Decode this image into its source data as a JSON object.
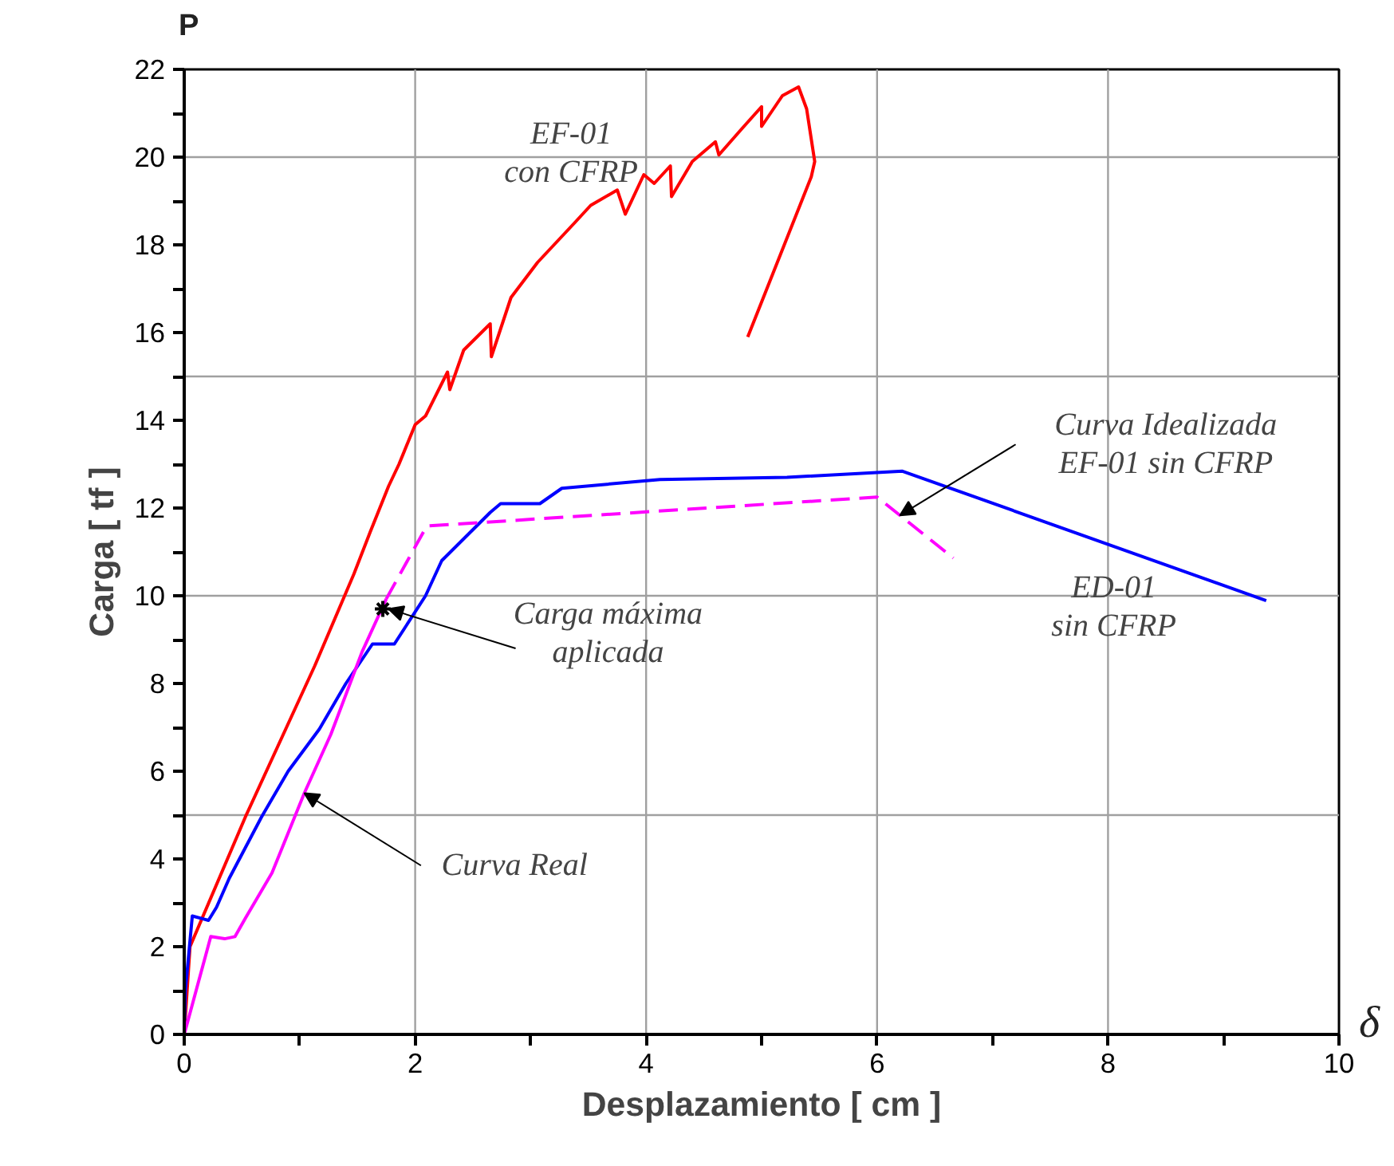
{
  "chart_data": {
    "type": "line",
    "xlabel": "Desplazamiento [ cm ]",
    "ylabel": "Carga [ tf ]",
    "xlim": [
      0,
      10
    ],
    "ylim": [
      0,
      22
    ],
    "xticks": [
      0,
      {
        "value": 1,
        "label": null
      },
      2,
      {
        "value": 3,
        "label": null
      },
      4,
      {
        "value": 5,
        "label": null
      },
      6,
      {
        "value": 7,
        "label": null
      },
      8,
      {
        "value": 9,
        "label": null
      },
      10
    ],
    "yticks": [
      0,
      {
        "value": 1,
        "label": null
      },
      2,
      {
        "value": 3,
        "label": null
      },
      4,
      {
        "value": 5,
        "label": null
      },
      6,
      {
        "value": 7,
        "label": null
      },
      8,
      {
        "value": 9,
        "label": null
      },
      10,
      {
        "value": 11,
        "label": null
      },
      12,
      {
        "value": 13,
        "label": null
      },
      14,
      {
        "value": 15,
        "label": null
      },
      16,
      {
        "value": 17,
        "label": null
      },
      18,
      {
        "value": 19,
        "label": null
      },
      20,
      {
        "value": 21,
        "label": null
      },
      22
    ],
    "grid": false,
    "marker": "none",
    "ref_lines": [
      {
        "axis": "x",
        "value": 2,
        "color": "#a0a0a0"
      },
      {
        "axis": "x",
        "value": 4,
        "color": "#a0a0a0"
      },
      {
        "axis": "x",
        "value": 6,
        "color": "#a0a0a0"
      },
      {
        "axis": "x",
        "value": 8,
        "color": "#a0a0a0"
      },
      {
        "axis": "y",
        "value": 5,
        "color": "#a0a0a0"
      },
      {
        "axis": "y",
        "value": 10,
        "color": "#a0a0a0"
      },
      {
        "axis": "y",
        "value": 15,
        "color": "#a0a0a0"
      },
      {
        "axis": "y",
        "value": 20,
        "color": "#a0a0a0"
      }
    ],
    "series": [
      {
        "name": "EF-01\ncon CFRP",
        "color": "#ff0000",
        "line_style": "solid",
        "x": [
          0,
          0.05,
          0.53,
          1.13,
          1.47,
          1.61,
          1.77,
          1.86,
          2.0,
          2.09,
          2.28,
          2.3,
          2.42,
          2.65,
          2.66,
          2.83,
          3.06,
          3.38,
          3.52,
          3.75,
          3.82,
          3.98,
          4.07,
          4.21,
          4.22,
          4.4,
          4.6,
          4.63,
          4.83,
          5.0,
          5.0,
          5.18,
          5.32,
          5.39,
          5.46,
          5.43,
          4.88
        ],
        "values": [
          0,
          2.0,
          4.96,
          8.4,
          10.5,
          11.45,
          12.5,
          13.0,
          13.9,
          14.1,
          15.1,
          14.7,
          15.6,
          16.2,
          15.45,
          16.8,
          17.6,
          18.5,
          18.9,
          19.25,
          18.7,
          19.6,
          19.4,
          19.8,
          19.1,
          19.9,
          20.35,
          20.05,
          20.65,
          21.15,
          20.7,
          21.4,
          21.6,
          21.1,
          19.9,
          19.55,
          15.9
        ]
      },
      {
        "name": "ED-01\nsin CFRP",
        "color": "#0000ff",
        "line_style": "solid",
        "x": [
          0,
          0.01,
          0.07,
          0.21,
          0.28,
          0.39,
          0.67,
          0.9,
          1.17,
          1.4,
          1.63,
          1.82,
          2.09,
          2.23,
          2.65,
          2.74,
          2.97,
          3.08,
          3.27,
          4.12,
          5.22,
          6.22,
          9.37
        ],
        "values": [
          0,
          1.0,
          2.7,
          2.6,
          2.9,
          3.56,
          4.96,
          6.0,
          6.96,
          8.0,
          8.9,
          8.9,
          10.0,
          10.8,
          11.9,
          12.1,
          12.1,
          12.1,
          12.45,
          12.65,
          12.7,
          12.84,
          9.89
        ]
      },
      {
        "name": "Curva Real",
        "color": "#ff00ff",
        "line_style": "solid",
        "x": [
          0,
          0.23,
          0.35,
          0.44,
          0.53,
          0.76,
          1.04,
          1.27,
          1.54,
          1.75
        ],
        "values": [
          0,
          2.23,
          2.18,
          2.23,
          2.65,
          3.68,
          5.5,
          6.84,
          8.72,
          9.93
        ]
      },
      {
        "name": "Curva Idealizada\nEF-01 sin CFRP",
        "color": "#ff00ff",
        "line_style": "dashed",
        "x": [
          1.75,
          2.1,
          6.0,
          6.66
        ],
        "values": [
          9.93,
          11.59,
          12.25,
          10.86
        ]
      }
    ],
    "annotations": [
      "P",
      "δ",
      {
        "text": "Carga máxima\naplicada",
        "x": 1.72,
        "y": 9.7
      }
    ]
  }
}
